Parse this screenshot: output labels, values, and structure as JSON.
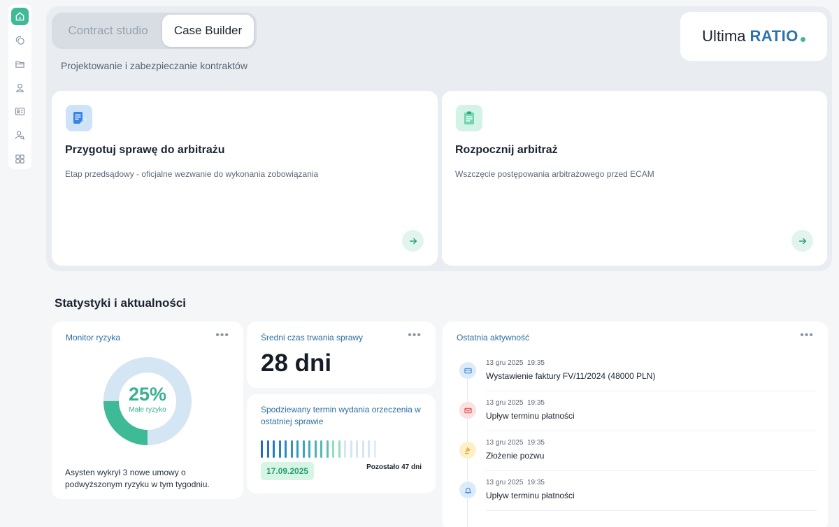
{
  "sidebar": {
    "items": [
      {
        "icon": "home-icon",
        "active": true
      },
      {
        "icon": "coins-icon"
      },
      {
        "icon": "folder-icon"
      },
      {
        "icon": "user-icon"
      },
      {
        "icon": "id-card-icon"
      },
      {
        "icon": "user-search-icon"
      },
      {
        "icon": "apps-grid-icon"
      }
    ]
  },
  "header": {
    "tabs": [
      {
        "label": "Contract studio",
        "active": false
      },
      {
        "label": "Case Builder",
        "active": true
      }
    ],
    "subtitle": "Projektowanie i zabezpieczanie kontraktów",
    "logo": {
      "part1": "Ultima",
      "part2": "RATIO"
    }
  },
  "actions": [
    {
      "icon": "document-edit-icon",
      "title": "Przygotuj sprawę do arbitrażu",
      "description": "Etap przedsądowy - oficjalne wezwanie do wykonania zobowiązania"
    },
    {
      "icon": "clipboard-icon",
      "title": "Rozpocznij arbitraż",
      "description": "Wszczęcie postępowania arbitrażowego przed ECAM"
    }
  ],
  "stats": {
    "section_title": "Statystyki i aktualności",
    "risk": {
      "label": "Monitor ryzyka",
      "percent_text": "25%",
      "percent_value": 25,
      "status": "Małe ryzyko",
      "note": "Asysten wykrył 3 nowe umowy o podwyższonym ryzyku w tym tygodniu."
    },
    "avg_duration": {
      "label": "Średni czas trwania sprawy",
      "value": "28 dni"
    },
    "expected": {
      "label": "Spodziewany termin wydania orzeczenia w ostatniej sprawie",
      "date": "17.09.2025",
      "remaining": "Pozostało 47 dni",
      "bars_total": 20,
      "bars_filled": 10,
      "bars_colored": 19
    },
    "activity": {
      "label": "Ostatnia aktywność",
      "items": [
        {
          "icon": "invoice-icon",
          "date": "13 gru 2025",
          "time": "19:35",
          "title": "Wystawienie faktury FV/11/2024 (48000 PLN)",
          "tone": "blue"
        },
        {
          "icon": "mail-icon",
          "date": "13 gru 2025",
          "time": "19:35",
          "title": "Upływ terminu płatności",
          "tone": "red"
        },
        {
          "icon": "gavel-icon",
          "date": "13 gru 2025",
          "time": "19:35",
          "title": "Złożenie pozwu",
          "tone": "yellow"
        },
        {
          "icon": "bell-icon",
          "date": "13 gru 2025",
          "time": "19:35",
          "title": "Upływ terminu płatności",
          "tone": "blue"
        }
      ]
    }
  },
  "colors": {
    "accent": "#3fba97",
    "brand_blue": "#2b74a8",
    "risk_green": "#35b28f",
    "risk_track": "#d4e5f4"
  }
}
